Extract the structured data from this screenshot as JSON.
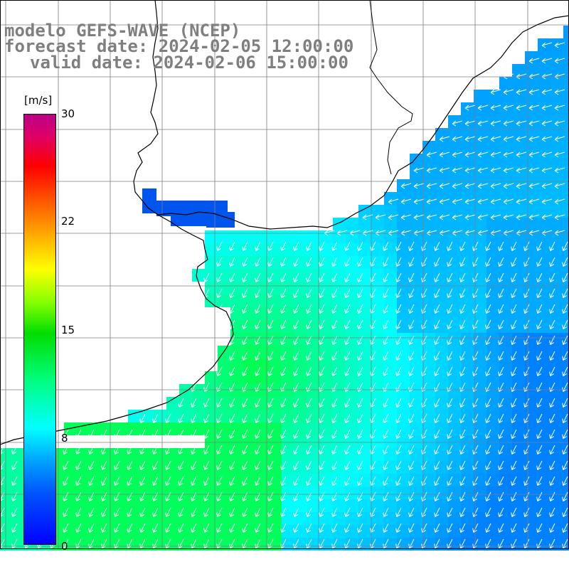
{
  "title": {
    "model": "modelo GEFS-WAVE (NCEP)",
    "forecast_date": "forecast date: 2024-02-05 12:00:00",
    "valid_date": "valid date: 2024-02-06 15:00:00"
  },
  "colorbar": {
    "unit": "[m/s]",
    "ticks": [
      "30",
      "22",
      "15",
      "8",
      "0"
    ],
    "colors": [
      "#0000ff",
      "#00aaff",
      "#00ffff",
      "#00dd00",
      "#ffff00",
      "#ff0000",
      "#bb0088"
    ]
  },
  "map": {
    "variable": "wind speed",
    "arrow_color": "#ffffff",
    "land_color": "#ffffff",
    "grid_color": "#7f7f7f",
    "coast_color": "#000000"
  }
}
